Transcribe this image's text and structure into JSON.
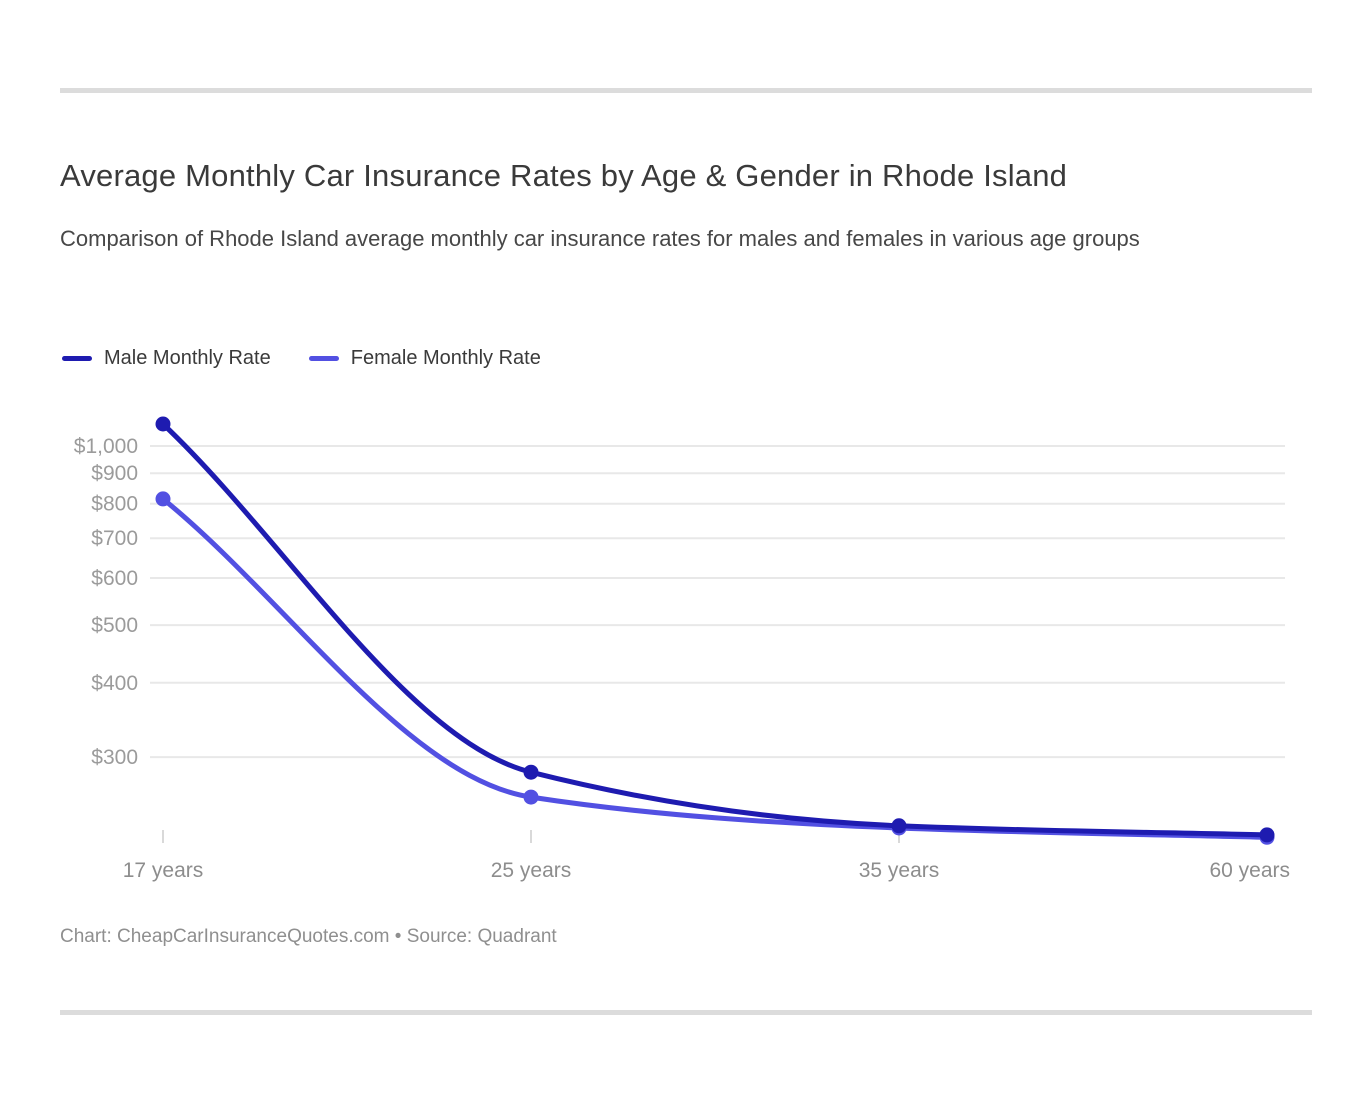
{
  "header": {
    "title": "Average Monthly Car Insurance Rates by Age & Gender in Rhode Island",
    "subtitle": "Comparison of Rhode Island average monthly car insurance rates for males and females in various age groups"
  },
  "legend": [
    {
      "label": "Male Monthly Rate",
      "color": "#1e1bb0"
    },
    {
      "label": "Female Monthly Rate",
      "color": "#5250e2"
    }
  ],
  "footer": {
    "text": "Chart: CheapCarInsuranceQuotes.com • Source: Quadrant"
  },
  "chart_data": {
    "type": "line",
    "categories": [
      "17 years",
      "25 years",
      "35 years",
      "60 years"
    ],
    "series": [
      {
        "name": "Male Monthly Rate",
        "color": "#1e1bb0",
        "values": [
          1089,
          283,
          230,
          222
        ]
      },
      {
        "name": "Female Monthly Rate",
        "color": "#5250e2",
        "values": [
          815,
          257,
          228,
          220
        ]
      }
    ],
    "title": "Average Monthly Car Insurance Rates by Age & Gender in Rhode Island",
    "xlabel": "",
    "ylabel": "",
    "y_scale": "log",
    "ylim": [
      210,
      1150
    ],
    "y_ticks": [
      1000,
      900,
      800,
      700,
      600,
      500,
      400,
      300
    ],
    "y_tick_labels": [
      "$1,000",
      "$900",
      "$800",
      "$700",
      "$600",
      "$500",
      "$400",
      "$300"
    ],
    "grid": true,
    "legend_position": "top-left",
    "colors": {
      "gridline": "#e8e8e8",
      "tick": "#d9d9d9",
      "y_tick_text": "#9b9b9b",
      "x_tick_text": "#8d8d8d"
    }
  }
}
